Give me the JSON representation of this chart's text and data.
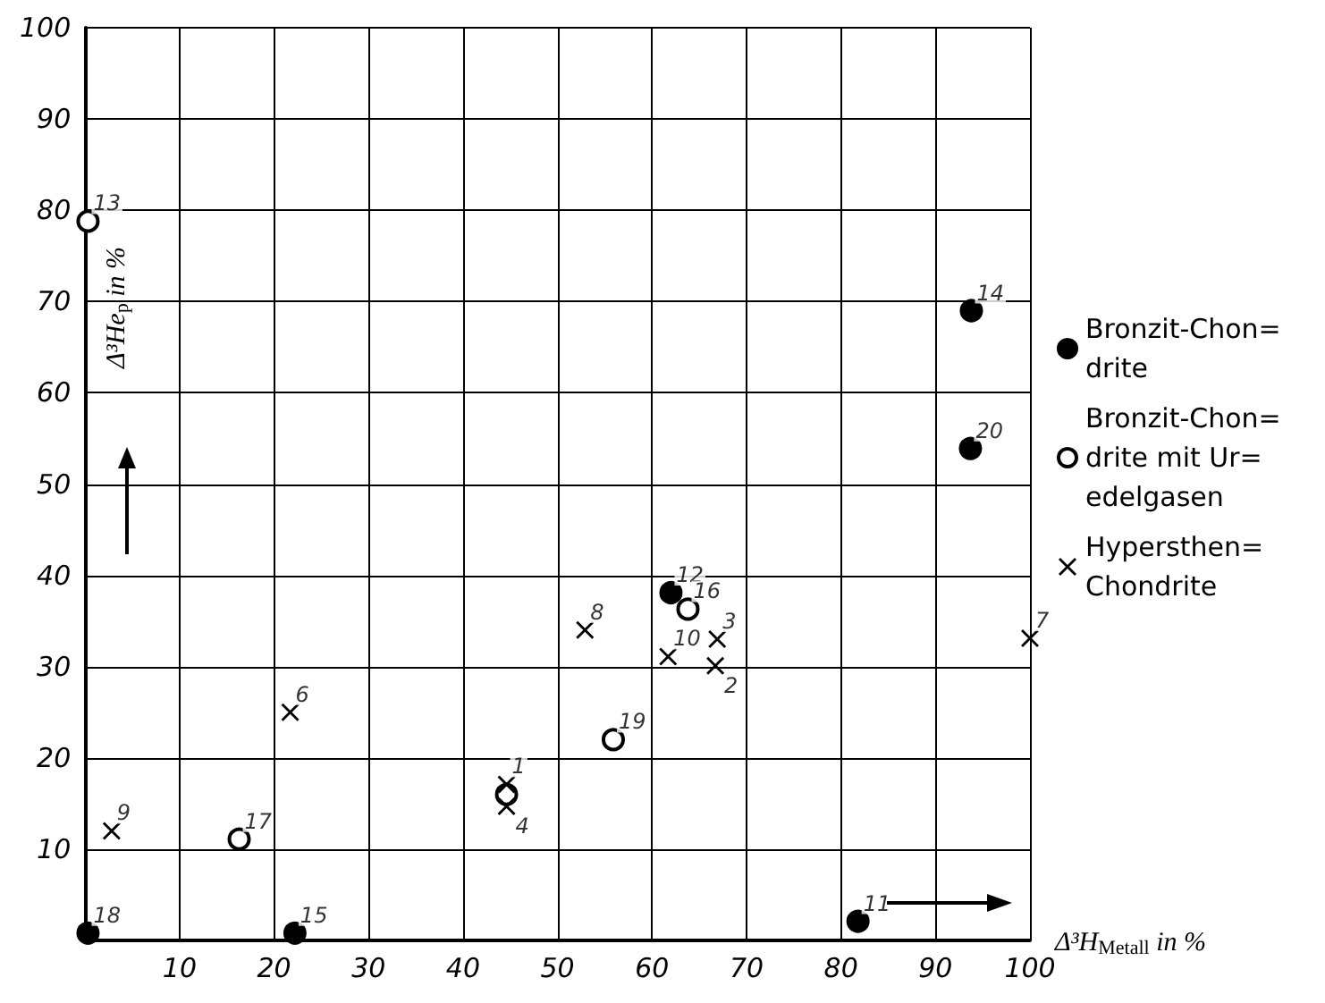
{
  "chart_data": {
    "type": "scatter",
    "xlabel": "Δ³H$_{Metall}$ in %",
    "ylabel": "Δ³He$_{p}$ in %",
    "xlim": [
      0,
      100
    ],
    "ylim": [
      0,
      100
    ],
    "xticks": [
      10,
      20,
      30,
      40,
      50,
      60,
      70,
      80,
      90,
      100
    ],
    "yticks": [
      10,
      20,
      30,
      40,
      50,
      60,
      70,
      80,
      90,
      100
    ],
    "grid": true,
    "legend": "right",
    "series": [
      {
        "name": "Bronzit-Chon= drite",
        "color": "#000000",
        "marker": "circle",
        "x": [
          0.3,
          22.2,
          62,
          93.8,
          93.7,
          81.8
        ],
        "values": [
          0.8,
          0.8,
          38.1,
          69,
          53.9,
          2.1
        ]
      },
      {
        "name": "Bronzit-Chon= drite mit Ur= edelgasen",
        "color": "#ffffff",
        "marker": "circle",
        "x": [
          0.3,
          16.3,
          55.9,
          63.8,
          44.6
        ],
        "values": [
          78.8,
          11.1,
          22,
          36.3,
          16
        ]
      },
      {
        "name": "Hypersthen= Chondrite",
        "color": "#000000",
        "marker": "cross",
        "x": [
          44.6,
          66.7,
          66.9,
          44.6,
          21.7,
          100,
          52.9,
          2.8,
          61.7
        ],
        "values": [
          17.1,
          30.1,
          33,
          14.7,
          25,
          33.1,
          34,
          12,
          31.1
        ]
      }
    ],
    "annotations": [
      {
        "text": "18",
        "x": 0.3,
        "y": 0.8
      },
      {
        "text": "15",
        "x": 22.2,
        "y": 0.8
      },
      {
        "text": "12",
        "x": 62,
        "y": 38.1
      },
      {
        "text": "14",
        "x": 93.8,
        "y": 69
      },
      {
        "text": "20",
        "x": 93.7,
        "y": 53.9
      },
      {
        "text": "11",
        "x": 81.8,
        "y": 2.1
      },
      {
        "text": "13",
        "x": 0.3,
        "y": 78.8
      },
      {
        "text": "17",
        "x": 16.3,
        "y": 11.1
      },
      {
        "text": "19",
        "x": 55.9,
        "y": 22
      },
      {
        "text": "16",
        "x": 63.8,
        "y": 36.3
      },
      {
        "text": "1",
        "x": 44.6,
        "y": 17.1
      },
      {
        "text": "2",
        "x": 66.7,
        "y": 30.1
      },
      {
        "text": "3",
        "x": 66.9,
        "y": 33
      },
      {
        "text": "4",
        "x": 44.6,
        "y": 14.7
      },
      {
        "text": "6",
        "x": 21.7,
        "y": 25
      },
      {
        "text": "7",
        "x": 100,
        "y": 33.1
      },
      {
        "text": "8",
        "x": 52.9,
        "y": 34
      },
      {
        "text": "9",
        "x": 2.8,
        "y": 12
      },
      {
        "text": "10",
        "x": 61.7,
        "y": 31.1
      }
    ]
  }
}
